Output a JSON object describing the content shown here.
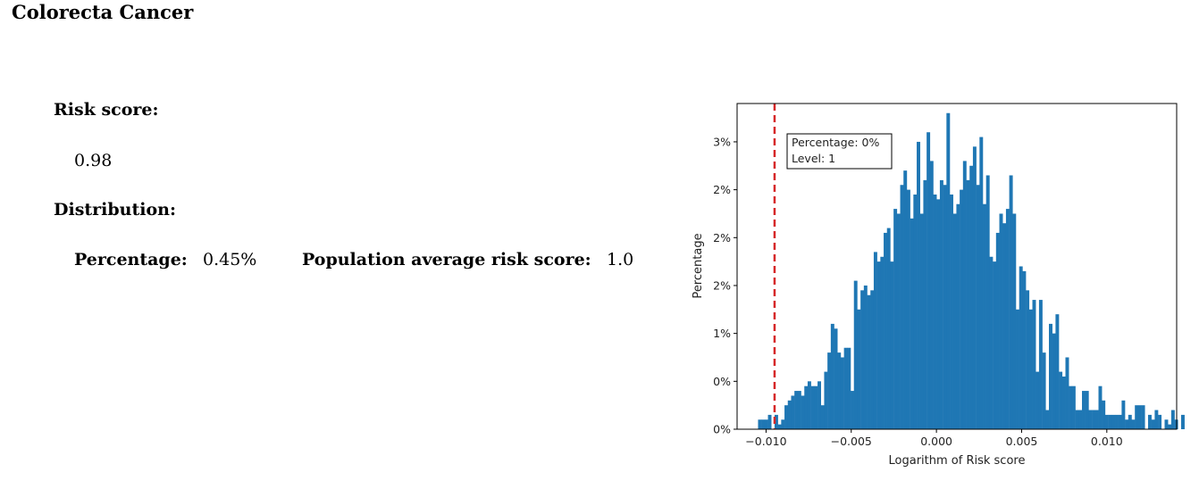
{
  "report": {
    "title": "Colorecta Cancer",
    "risk_score_label": "Risk score:",
    "risk_score_value": "0.98",
    "distribution_label": "Distribution:",
    "percentage_label": "Percentage:",
    "percentage_value": "0.45%",
    "population_avg_label": "Population average risk score:",
    "population_avg_value": "1.0"
  },
  "chart_data": {
    "type": "bar",
    "xlabel": "Logarithm of Risk score",
    "ylabel": "Percentage",
    "xlim": [
      -0.0117,
      0.0141
    ],
    "ylim": [
      0,
      3.4
    ],
    "x_ticks": [
      -0.01,
      -0.005,
      0.0,
      0.005,
      0.01
    ],
    "x_tick_labels": [
      "−0.010",
      "−0.005",
      "0.000",
      "0.005",
      "0.010"
    ],
    "y_ticks": [
      0,
      0.5,
      1.0,
      1.5,
      2.0,
      2.5,
      3.0
    ],
    "y_tick_labels": [
      "0%",
      "0%",
      "1%",
      "2%",
      "2%",
      "2%",
      "3%"
    ],
    "bar_color": "#1f77b4",
    "bins": {
      "start": -0.01047,
      "width": 0.000194,
      "values": [
        0.1,
        0.1,
        0.1,
        0.15,
        0,
        0.15,
        0.05,
        0.1,
        0.25,
        0.3,
        0.35,
        0.4,
        0.4,
        0.35,
        0.45,
        0.5,
        0.45,
        0.45,
        0.5,
        0.25,
        0.6,
        0.8,
        1.1,
        1.05,
        0.8,
        0.75,
        0.85,
        0.85,
        0.4,
        1.55,
        1.25,
        1.45,
        1.5,
        1.4,
        1.45,
        1.85,
        1.75,
        1.8,
        2.05,
        2.1,
        1.75,
        2.3,
        2.25,
        2.55,
        2.7,
        2.5,
        2.2,
        2.45,
        3.0,
        2.25,
        2.6,
        3.1,
        2.8,
        2.45,
        2.4,
        2.6,
        2.55,
        3.3,
        2.45,
        2.25,
        2.35,
        2.5,
        2.8,
        2.6,
        2.75,
        2.95,
        2.55,
        3.05,
        2.35,
        2.65,
        1.8,
        1.75,
        2.05,
        2.25,
        2.15,
        2.3,
        2.65,
        2.25,
        1.25,
        1.7,
        1.65,
        1.45,
        1.25,
        1.35,
        0.6,
        1.35,
        0.8,
        0.2,
        1.1,
        1.0,
        1.2,
        0.6,
        0.55,
        0.75,
        0.45,
        0.45,
        0.2,
        0.2,
        0.4,
        0.4,
        0.2,
        0.2,
        0.2,
        0.45,
        0.3,
        0.15,
        0.15,
        0.15,
        0.15,
        0.15,
        0.3,
        0.1,
        0.15,
        0.1,
        0.25,
        0.25,
        0.25,
        0,
        0.15,
        0.1,
        0.2,
        0.15,
        0,
        0.1,
        0.05,
        0.2,
        0.1,
        0,
        0.15,
        0,
        0.1,
        0.1,
        0.2,
        0.05,
        0.05,
        0.1,
        0.05,
        0.25,
        0.1,
        0.15,
        0,
        0.1,
        0.15,
        0,
        0.1,
        0.1,
        0,
        0.1,
        0,
        0,
        0,
        0,
        0,
        0,
        0,
        0,
        0,
        0,
        0,
        0,
        0,
        0,
        0,
        0,
        0,
        0,
        0,
        0,
        0,
        0,
        0,
        0,
        0,
        0,
        0,
        0,
        0,
        0,
        0,
        0,
        0,
        0,
        0,
        0,
        0,
        0,
        0,
        0,
        0,
        0,
        0,
        0,
        0,
        0,
        0,
        0,
        0,
        0,
        0,
        0,
        0,
        0,
        0,
        0,
        0,
        0,
        0,
        0,
        0.1
      ]
    },
    "marker": {
      "x": -0.0095,
      "color": "#d62728"
    },
    "annotation": {
      "line1": "Percentage: 0%",
      "line2": "Level: 1"
    }
  }
}
